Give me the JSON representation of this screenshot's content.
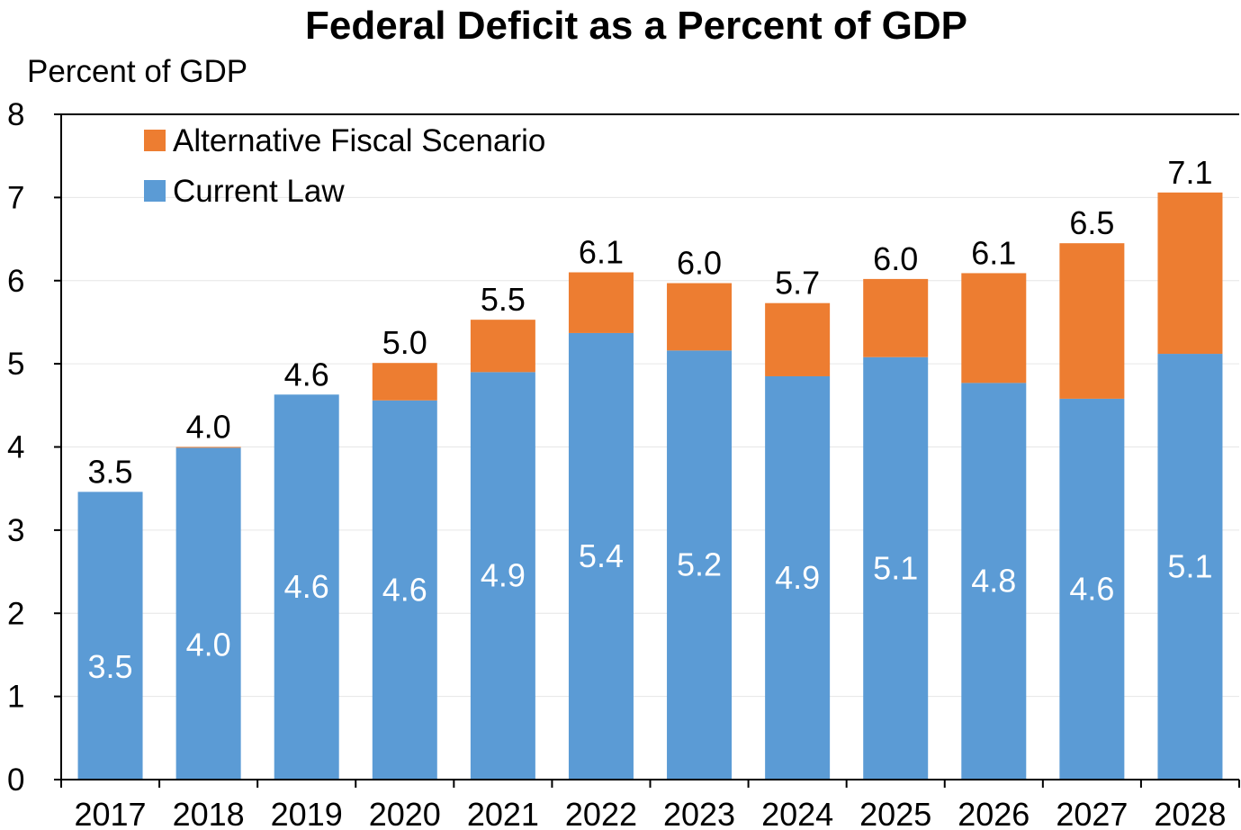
{
  "chart_data": {
    "type": "bar",
    "stacked": true,
    "title": "Federal Deficit as a Percent of GDP",
    "ylabel": "Percent of GDP",
    "xlabel": "",
    "ylim": [
      0,
      8
    ],
    "yticks": [
      0,
      1,
      2,
      3,
      4,
      5,
      6,
      7,
      8
    ],
    "grid": true,
    "legend_position": "top-left",
    "categories": [
      "2017",
      "2018",
      "2019",
      "2020",
      "2021",
      "2022",
      "2023",
      "2024",
      "2025",
      "2026",
      "2027",
      "2028"
    ],
    "series": [
      {
        "name": "Current Law",
        "color": "#5B9BD5",
        "values": [
          3.46,
          3.99,
          4.63,
          4.56,
          4.9,
          5.37,
          5.16,
          4.85,
          5.08,
          4.77,
          4.58,
          5.12
        ],
        "labels": [
          "3.5",
          "4.0",
          "4.6",
          "4.6",
          "4.9",
          "5.4",
          "5.2",
          "4.9",
          "5.1",
          "4.8",
          "4.6",
          "5.1"
        ]
      },
      {
        "name": "Alternative Fiscal Scenario",
        "color": "#ED7D31",
        "values": [
          0.0,
          0.01,
          0.0,
          0.45,
          0.63,
          0.73,
          0.81,
          0.88,
          0.94,
          1.32,
          1.87,
          1.94
        ]
      }
    ],
    "totals": [
      "3.5",
      "4.0",
      "4.6",
      "5.0",
      "5.5",
      "6.1",
      "6.0",
      "5.7",
      "6.0",
      "6.1",
      "6.5",
      "7.1"
    ],
    "legend": [
      "Alternative Fiscal Scenario",
      "Current Law"
    ]
  }
}
